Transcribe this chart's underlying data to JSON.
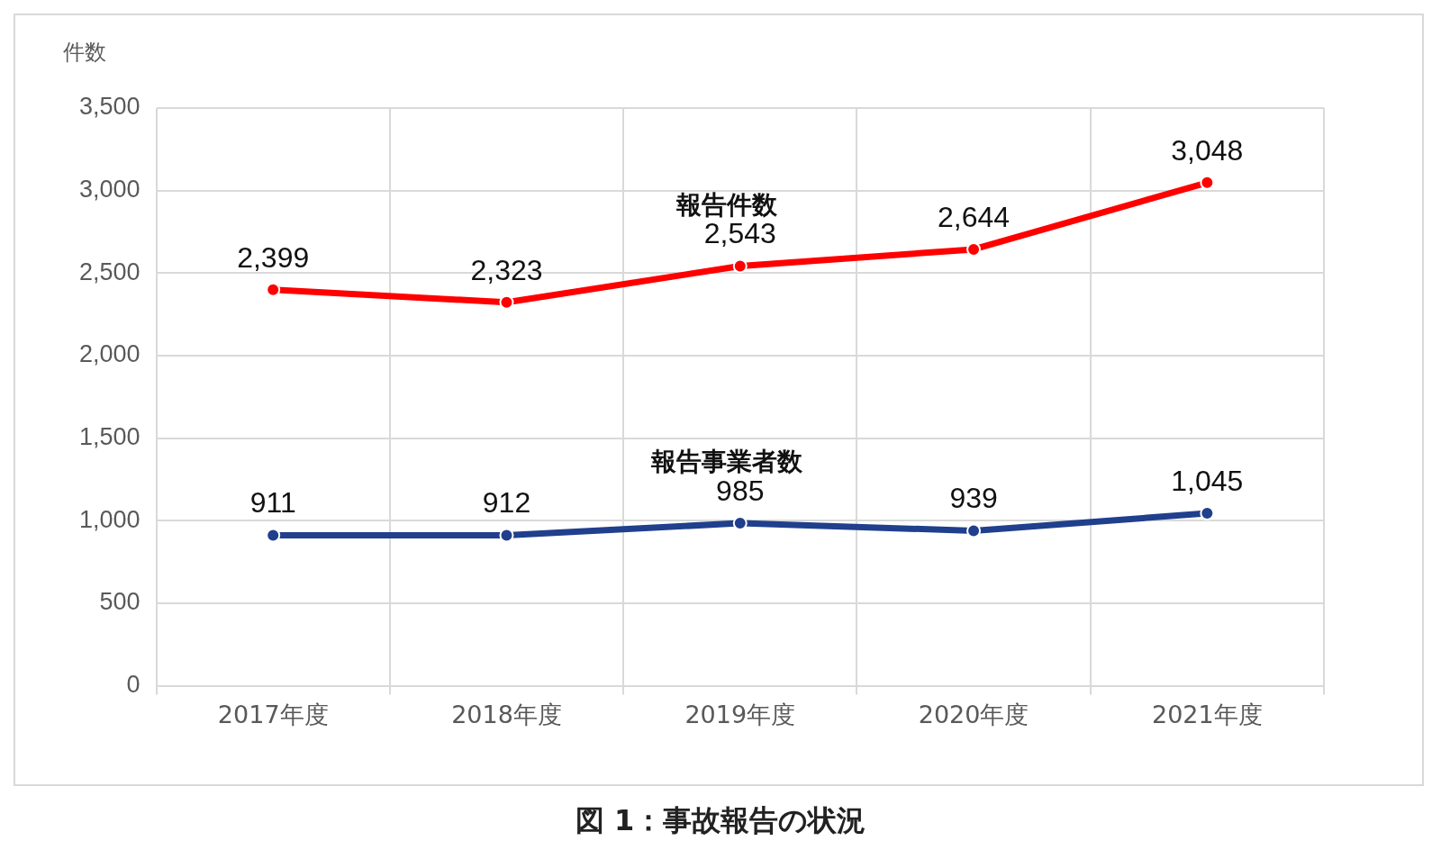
{
  "chart_data": {
    "type": "line",
    "ylabel": "件数",
    "categories": [
      "2017年度",
      "2018年度",
      "2019年度",
      "2020年度",
      "2021年度"
    ],
    "series": [
      {
        "name": "報告件数",
        "color": "#ff0000",
        "values": [
          2399,
          2323,
          2543,
          2644,
          3048
        ],
        "value_labels": [
          "2,399",
          "2,323",
          "2,543",
          "2,644",
          "3,048"
        ]
      },
      {
        "name": "報告事業者数",
        "color": "#203f8c",
        "values": [
          911,
          912,
          985,
          939,
          1045
        ],
        "value_labels": [
          "911",
          "912",
          "985",
          "939",
          "1,045"
        ]
      }
    ],
    "ylim": [
      0,
      3500
    ],
    "yticks": [
      {
        "value": 0,
        "label": "0"
      },
      {
        "value": 500,
        "label": "500"
      },
      {
        "value": 1000,
        "label": "1,000"
      },
      {
        "value": 1500,
        "label": "1,500"
      },
      {
        "value": 2000,
        "label": "2,000"
      },
      {
        "value": 2500,
        "label": "2,500"
      },
      {
        "value": 3000,
        "label": "3,000"
      },
      {
        "value": 3500,
        "label": "3,500"
      }
    ],
    "grid": true,
    "legend": false,
    "marker": "circle",
    "line_style": "solid",
    "annotations": [
      "図 1：事故報告の状況"
    ]
  }
}
